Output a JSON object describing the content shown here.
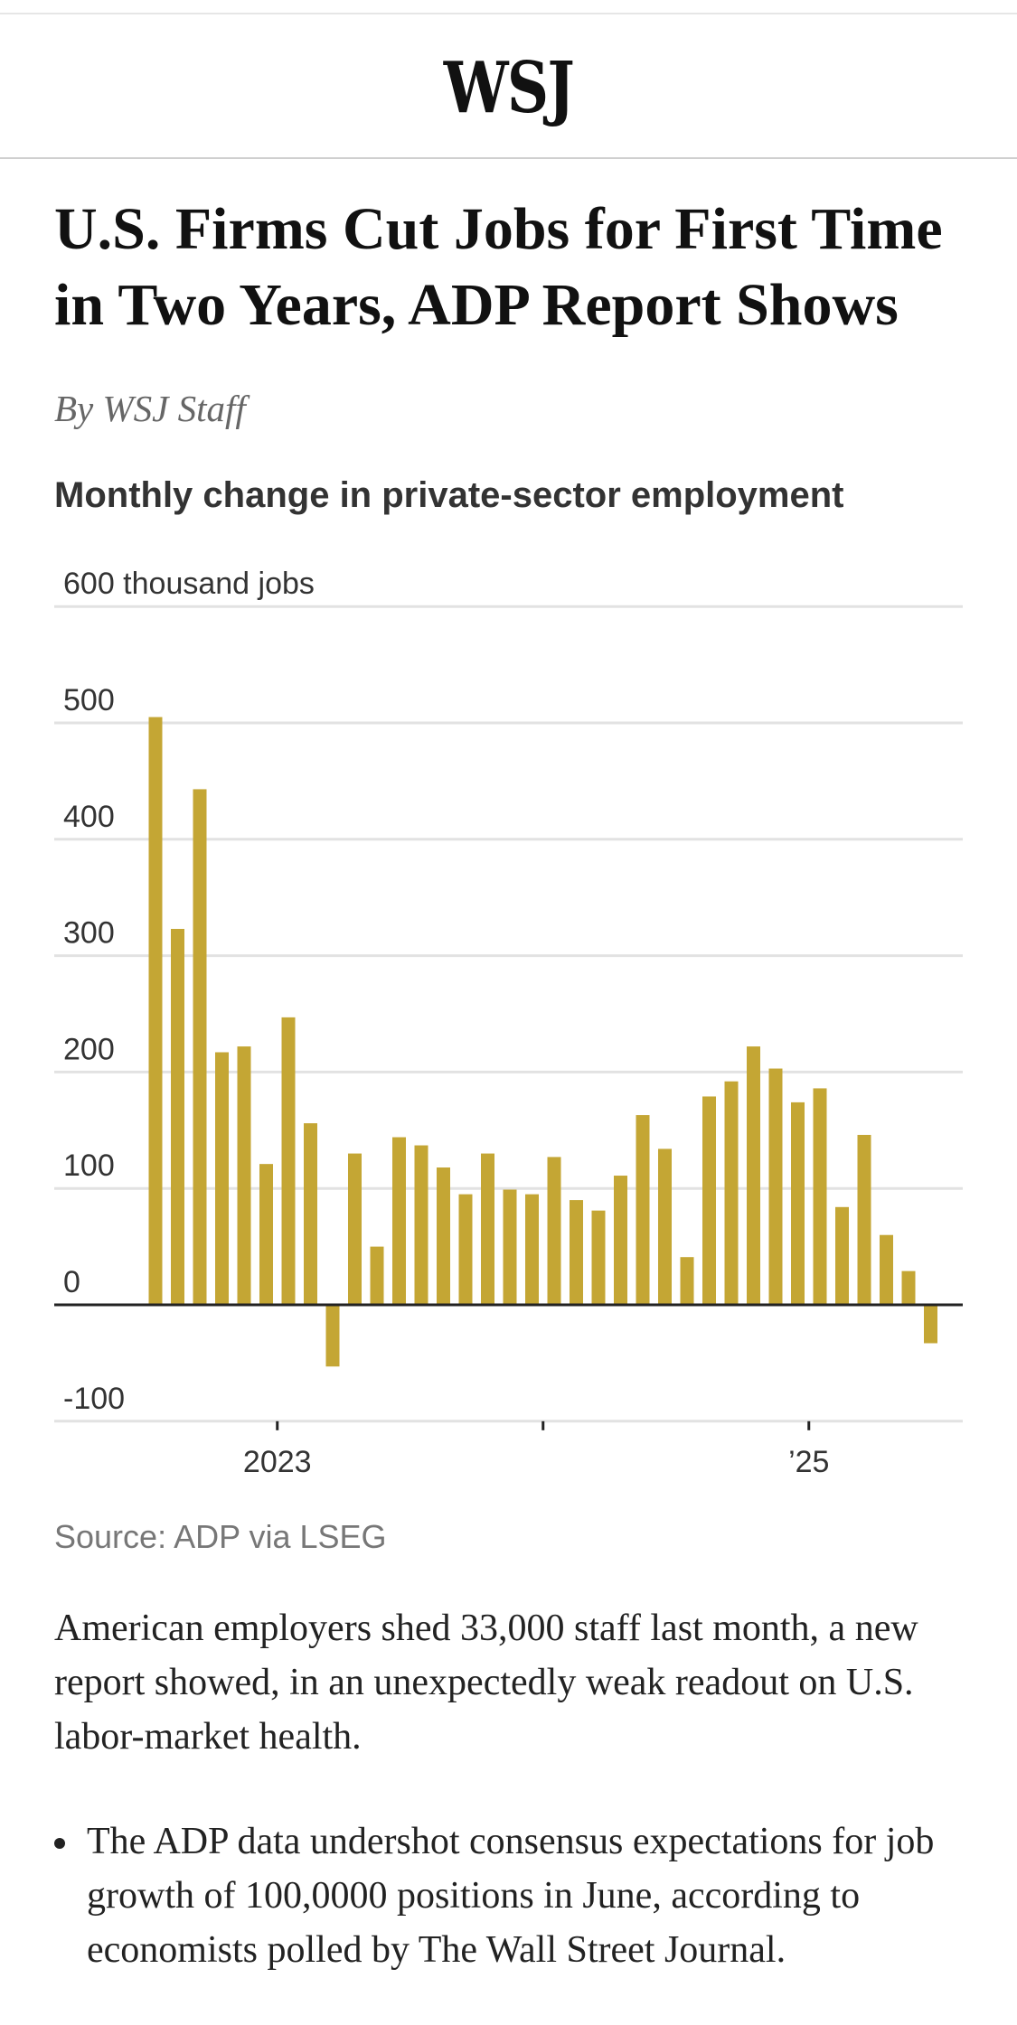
{
  "masthead": {
    "logo_text": "WSJ"
  },
  "article": {
    "headline": "U.S. Firms Cut Jobs for First Time in Two Years, ADP Report Shows",
    "byline": "By WSJ Staff",
    "paragraph": "American employers shed 33,000 staff last month, a new report showed, in an unexpectedly weak readout on U.S. labor-market health.",
    "bullets": [
      "The ADP data undershot consensus expectations for job growth of 100,0000 positions in June, according to economists polled by The Wall Street Journal."
    ]
  },
  "chart_data": {
    "type": "bar",
    "title": "Monthly change in private-sector employment",
    "ylabel": "600 thousand jobs",
    "source": "Source: ADP via LSEG",
    "bar_color": "#c4a634",
    "ylim": [
      -100,
      600
    ],
    "yticks": [
      {
        "value": 600,
        "label": "600 thousand jobs"
      },
      {
        "value": 500,
        "label": "500"
      },
      {
        "value": 400,
        "label": "400"
      },
      {
        "value": 300,
        "label": "300"
      },
      {
        "value": 200,
        "label": "200"
      },
      {
        "value": 100,
        "label": "100"
      },
      {
        "value": 0,
        "label": "0"
      },
      {
        "value": -100,
        "label": "-100"
      }
    ],
    "xticks": [
      {
        "after_index": 5,
        "label": "2023"
      },
      {
        "after_index": 17,
        "label": ""
      },
      {
        "after_index": 29,
        "label": "’25"
      }
    ],
    "values": [
      505,
      323,
      443,
      217,
      222,
      121,
      247,
      156,
      -53,
      130,
      50,
      144,
      137,
      118,
      95,
      130,
      99,
      95,
      127,
      90,
      81,
      111,
      163,
      134,
      41,
      179,
      192,
      222,
      203,
      174,
      186,
      84,
      146,
      60,
      29,
      -33
    ],
    "grid": true
  }
}
